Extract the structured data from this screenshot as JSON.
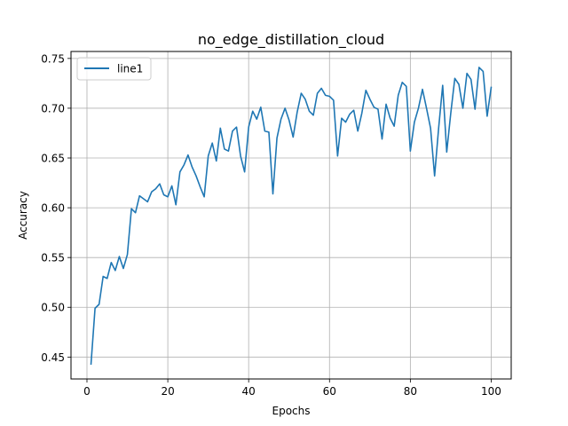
{
  "chart_data": {
    "type": "line",
    "title": "no_edge_distillation_cloud",
    "xlabel": "Epochs",
    "ylabel": "Accuracy",
    "xlim": [
      -3.95,
      104.95
    ],
    "ylim": [
      0.428,
      0.757
    ],
    "xticks": [
      0,
      20,
      40,
      60,
      80,
      100
    ],
    "yticks": [
      0.45,
      0.5,
      0.55,
      0.6,
      0.65,
      0.7,
      0.75
    ],
    "ytick_labels": [
      "0.45",
      "0.50",
      "0.55",
      "0.60",
      "0.65",
      "0.70",
      "0.75"
    ],
    "grid": true,
    "legend": "top-left",
    "color": "#1f77b4",
    "series": [
      {
        "name": "line1",
        "x": [
          1,
          2,
          3,
          4,
          5,
          6,
          7,
          8,
          9,
          10,
          11,
          12,
          13,
          14,
          15,
          16,
          17,
          18,
          19,
          20,
          21,
          22,
          23,
          24,
          25,
          26,
          27,
          28,
          29,
          30,
          31,
          32,
          33,
          34,
          35,
          36,
          37,
          38,
          39,
          40,
          41,
          42,
          43,
          44,
          45,
          46,
          47,
          48,
          49,
          50,
          51,
          52,
          53,
          54,
          55,
          56,
          57,
          58,
          59,
          60,
          61,
          62,
          63,
          64,
          65,
          66,
          67,
          68,
          69,
          70,
          71,
          72,
          73,
          74,
          75,
          76,
          77,
          78,
          79,
          80,
          81,
          82,
          83,
          84,
          85,
          86,
          87,
          88,
          89,
          90,
          91,
          92,
          93,
          94,
          95,
          96,
          97,
          98,
          99,
          100
        ],
        "values": [
          0.443,
          0.499,
          0.503,
          0.531,
          0.529,
          0.545,
          0.537,
          0.551,
          0.539,
          0.553,
          0.599,
          0.595,
          0.612,
          0.609,
          0.606,
          0.616,
          0.619,
          0.624,
          0.613,
          0.611,
          0.622,
          0.603,
          0.636,
          0.643,
          0.653,
          0.641,
          0.632,
          0.621,
          0.611,
          0.652,
          0.665,
          0.647,
          0.68,
          0.659,
          0.657,
          0.677,
          0.681,
          0.652,
          0.636,
          0.681,
          0.697,
          0.689,
          0.701,
          0.677,
          0.676,
          0.614,
          0.67,
          0.689,
          0.7,
          0.688,
          0.671,
          0.696,
          0.715,
          0.709,
          0.697,
          0.693,
          0.715,
          0.72,
          0.713,
          0.712,
          0.708,
          0.652,
          0.69,
          0.686,
          0.694,
          0.698,
          0.677,
          0.695,
          0.718,
          0.709,
          0.701,
          0.699,
          0.669,
          0.704,
          0.69,
          0.682,
          0.713,
          0.726,
          0.722,
          0.657,
          0.686,
          0.7,
          0.719,
          0.7,
          0.68,
          0.632,
          0.68,
          0.723,
          0.656,
          0.695,
          0.73,
          0.724,
          0.7,
          0.735,
          0.729,
          0.699,
          0.741,
          0.737,
          0.692,
          0.721
        ]
      }
    ]
  }
}
